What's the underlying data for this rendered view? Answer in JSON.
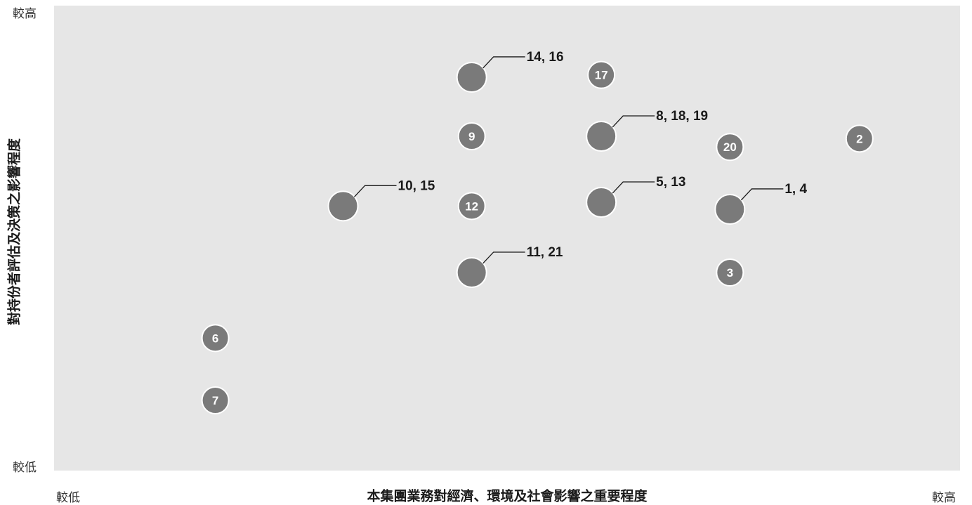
{
  "chart_data": {
    "type": "scatter",
    "title": "",
    "xlabel": "本集團業務對經濟、環境及社會影響之重要程度",
    "ylabel": "對持份者評估及決策之影響程度",
    "x_low_label": "較低",
    "x_high_label": "較高",
    "y_low_label": "較低",
    "y_high_label": "較高",
    "xlim": [
      0,
      100
    ],
    "ylim": [
      0,
      100
    ],
    "grid": false,
    "legend": "none",
    "points": [
      {
        "label": "1, 4",
        "x": 74.6,
        "y": 56.2,
        "callout": true
      },
      {
        "label": "2",
        "x": 88.9,
        "y": 71.4,
        "callout": false
      },
      {
        "label": "3",
        "x": 74.6,
        "y": 42.6,
        "callout": false
      },
      {
        "label": "5, 13",
        "x": 60.4,
        "y": 57.7,
        "callout": true
      },
      {
        "label": "6",
        "x": 17.8,
        "y": 28.5,
        "callout": false
      },
      {
        "label": "7",
        "x": 17.8,
        "y": 15.1,
        "callout": false
      },
      {
        "label": "8, 18, 19",
        "x": 60.4,
        "y": 71.9,
        "callout": true
      },
      {
        "label": "9",
        "x": 46.1,
        "y": 71.9,
        "callout": false
      },
      {
        "label": "10, 15",
        "x": 31.9,
        "y": 56.9,
        "callout": true
      },
      {
        "label": "11, 21",
        "x": 46.1,
        "y": 42.6,
        "callout": true
      },
      {
        "label": "12",
        "x": 46.1,
        "y": 56.9,
        "callout": false
      },
      {
        "label": "14, 16",
        "x": 46.1,
        "y": 84.6,
        "callout": true
      },
      {
        "label": "17",
        "x": 60.4,
        "y": 85.1,
        "callout": false
      },
      {
        "label": "20",
        "x": 74.6,
        "y": 69.6,
        "callout": false
      }
    ]
  },
  "colors": {
    "plot_background": "#e6e6e6",
    "marker_fill": "#7a7a7a",
    "marker_stroke": "#ffffff",
    "marker_text": "#ffffff",
    "callout_text": "#1a1a1a"
  }
}
